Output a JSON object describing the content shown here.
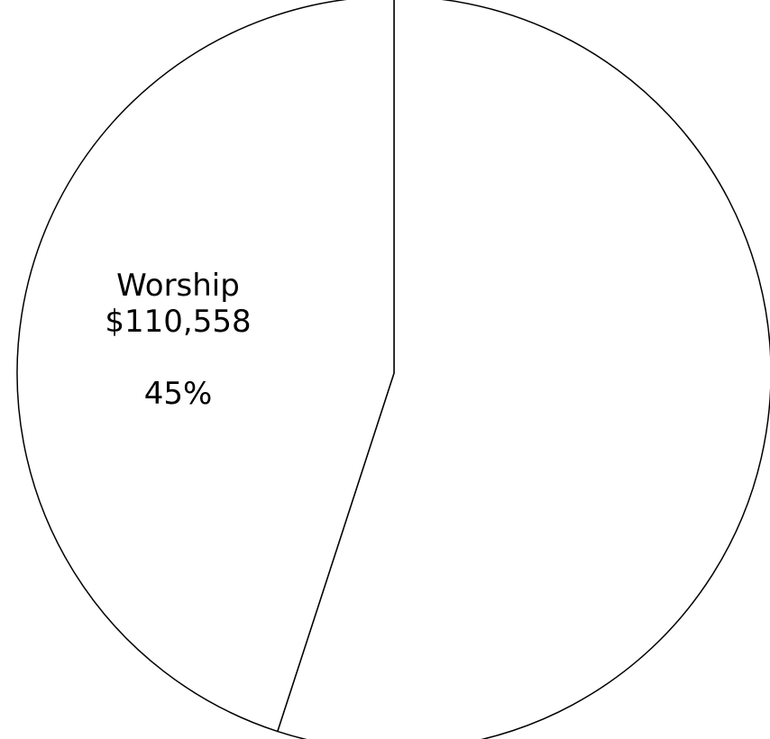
{
  "chart_data": {
    "type": "pie",
    "title": "",
    "slices": [
      {
        "label": "",
        "value": null,
        "percent_label": "",
        "share": 0.55,
        "color": "#ffffff"
      },
      {
        "label": "Worship",
        "value": "$110,558",
        "percent_label": "45%",
        "share": 0.45,
        "color": "#ffffff"
      }
    ],
    "start_angle_deg": 0,
    "direction": "clockwise",
    "outline_color": "#000000"
  }
}
